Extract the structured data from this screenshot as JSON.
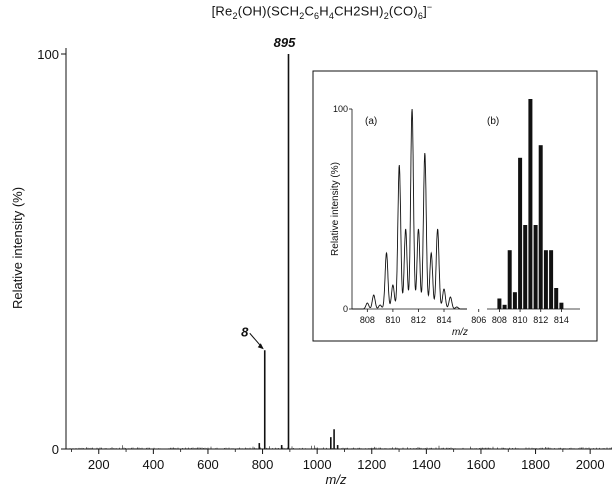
{
  "chart_data": [
    {
      "type": "line",
      "title_parts": [
        "[Re",
        "2",
        "(OH)(SCH",
        "2",
        "C",
        "6",
        "H",
        "4",
        "CH2SH)",
        "2",
        "(CO)",
        "6",
        "]",
        "−"
      ],
      "xlabel": "m/z",
      "ylabel": "Relative intensity (%)",
      "xlim": [
        80,
        2080
      ],
      "ylim": [
        0,
        100
      ],
      "x_ticks": [
        200,
        400,
        600,
        800,
        1000,
        1200,
        1400,
        1600,
        1800,
        2000
      ],
      "y_ticks": [
        0,
        100
      ],
      "peaks": [
        {
          "x": 808,
          "y": 25
        },
        {
          "x": 895,
          "y": 100
        },
        {
          "x": 788,
          "y": 1.5
        },
        {
          "x": 870,
          "y": 1
        },
        {
          "x": 1050,
          "y": 3
        },
        {
          "x": 1062,
          "y": 5
        },
        {
          "x": 1075,
          "y": 1
        }
      ],
      "annotations": [
        {
          "text": "895",
          "x": 895,
          "y": 100
        },
        {
          "text": "8",
          "x": 808,
          "y": 25
        }
      ]
    },
    {
      "type": "line",
      "panel_label": "(a)",
      "xlabel": "m/z",
      "ylabel": "Relative intensity (%)",
      "xlim": [
        806.8,
        815.8
      ],
      "ylim": [
        0,
        100
      ],
      "x_ticks": [
        808,
        810,
        812,
        814
      ],
      "y_ticks": [
        0,
        100
      ],
      "peaks": [
        {
          "x": 808.0,
          "y": 3
        },
        {
          "x": 808.5,
          "y": 7
        },
        {
          "x": 809.0,
          "y": 2
        },
        {
          "x": 809.5,
          "y": 28
        },
        {
          "x": 810.0,
          "y": 12
        },
        {
          "x": 810.5,
          "y": 72
        },
        {
          "x": 811.0,
          "y": 40
        },
        {
          "x": 811.5,
          "y": 100
        },
        {
          "x": 812.0,
          "y": 40
        },
        {
          "x": 812.5,
          "y": 78
        },
        {
          "x": 813.0,
          "y": 28
        },
        {
          "x": 813.5,
          "y": 40
        },
        {
          "x": 814.0,
          "y": 10
        },
        {
          "x": 814.5,
          "y": 6
        },
        {
          "x": 815.0,
          "y": 1
        }
      ]
    },
    {
      "type": "bar",
      "panel_label": "(b)",
      "xlim": [
        806.8,
        815.8
      ],
      "ylim": [
        0,
        100
      ],
      "x_ticks": [
        806,
        808,
        810,
        812,
        814
      ],
      "bars": [
        {
          "x": 808.0,
          "y": 5
        },
        {
          "x": 808.5,
          "y": 2
        },
        {
          "x": 809.0,
          "y": 28
        },
        {
          "x": 809.5,
          "y": 8
        },
        {
          "x": 810.0,
          "y": 72
        },
        {
          "x": 810.5,
          "y": 40
        },
        {
          "x": 811.0,
          "y": 100
        },
        {
          "x": 811.5,
          "y": 40
        },
        {
          "x": 812.0,
          "y": 78
        },
        {
          "x": 812.5,
          "y": 28
        },
        {
          "x": 813.0,
          "y": 28
        },
        {
          "x": 813.5,
          "y": 10
        },
        {
          "x": 814.0,
          "y": 3
        }
      ]
    }
  ]
}
